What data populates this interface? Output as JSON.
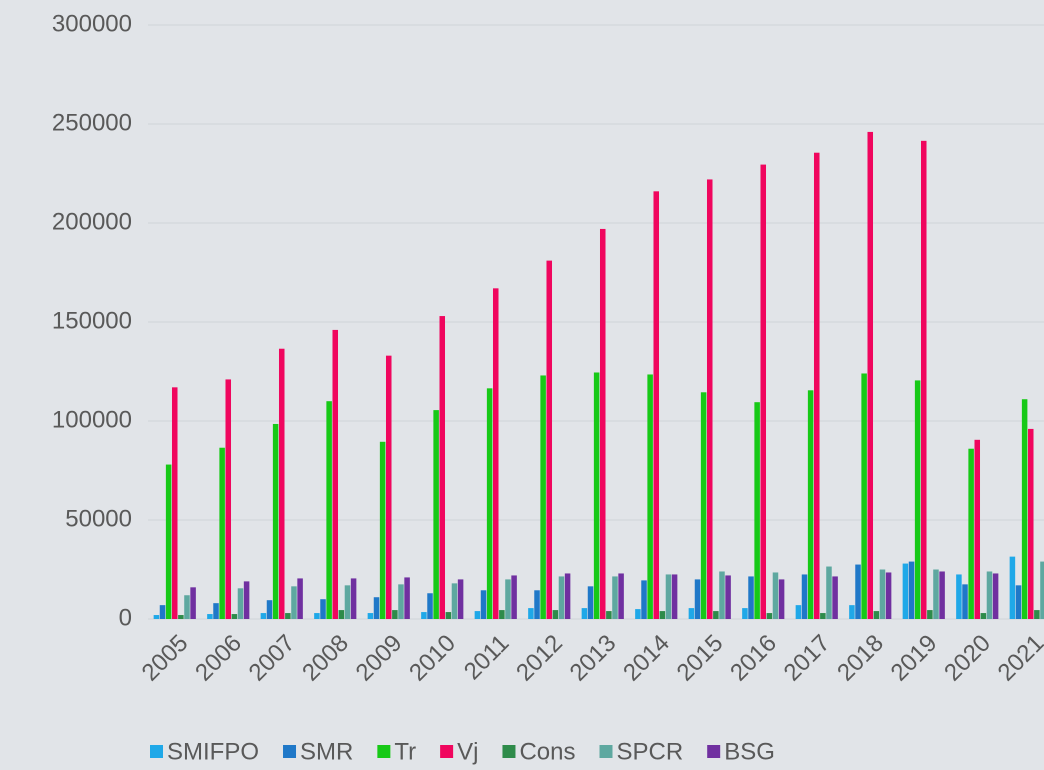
{
  "chart_data": {
    "type": "bar",
    "categories": [
      "2005",
      "2006",
      "2007",
      "2008",
      "2009",
      "2010",
      "2011",
      "2012",
      "2013",
      "2014",
      "2015",
      "2016",
      "2017",
      "2018",
      "2019",
      "2020",
      "2021"
    ],
    "series": [
      {
        "name": "SMIFPO",
        "color": "#1fa8e8",
        "values": [
          2000,
          2500,
          3000,
          3000,
          3000,
          3500,
          4000,
          5500,
          5500,
          5000,
          5500,
          5500,
          7000,
          7000,
          28000,
          22500,
          31500
        ]
      },
      {
        "name": "SMR",
        "color": "#1f78c8",
        "values": [
          7000,
          8000,
          9500,
          10000,
          11000,
          13000,
          14500,
          14500,
          16500,
          19500,
          20000,
          21500,
          22500,
          27500,
          29000,
          17500,
          17000
        ]
      },
      {
        "name": "Tr",
        "color": "#17c917",
        "values": [
          78000,
          86500,
          98500,
          110000,
          89500,
          105500,
          116500,
          123000,
          124500,
          123500,
          114500,
          109500,
          115500,
          124000,
          120500,
          86000,
          111000
        ]
      },
      {
        "name": "Vj",
        "color": "#f0065e",
        "values": [
          117000,
          121000,
          136500,
          146000,
          133000,
          153000,
          167000,
          181000,
          197000,
          216000,
          222000,
          229500,
          235500,
          246000,
          241500,
          90500,
          96000
        ]
      },
      {
        "name": "Cons",
        "color": "#2e8b4a",
        "values": [
          2000,
          2500,
          3000,
          4500,
          4500,
          3500,
          4500,
          4500,
          4000,
          4000,
          4000,
          3000,
          3000,
          4000,
          4500,
          3000,
          4500
        ]
      },
      {
        "name": "SPCR",
        "color": "#5ea8a0",
        "values": [
          12000,
          15500,
          16500,
          17000,
          17500,
          18000,
          20000,
          21500,
          21500,
          22500,
          24000,
          23500,
          26500,
          25000,
          25000,
          24000,
          29000
        ]
      },
      {
        "name": "BSG",
        "color": "#7030a0",
        "values": [
          16000,
          19000,
          20500,
          20500,
          21000,
          20000,
          22000,
          23000,
          23000,
          22500,
          22000,
          20000,
          21500,
          23500,
          24000,
          23000,
          null
        ]
      }
    ],
    "ylim": [
      0,
      300000
    ],
    "yticks": [
      0,
      50000,
      100000,
      150000,
      200000,
      250000,
      300000
    ],
    "grid": true,
    "legend": "bottom"
  }
}
